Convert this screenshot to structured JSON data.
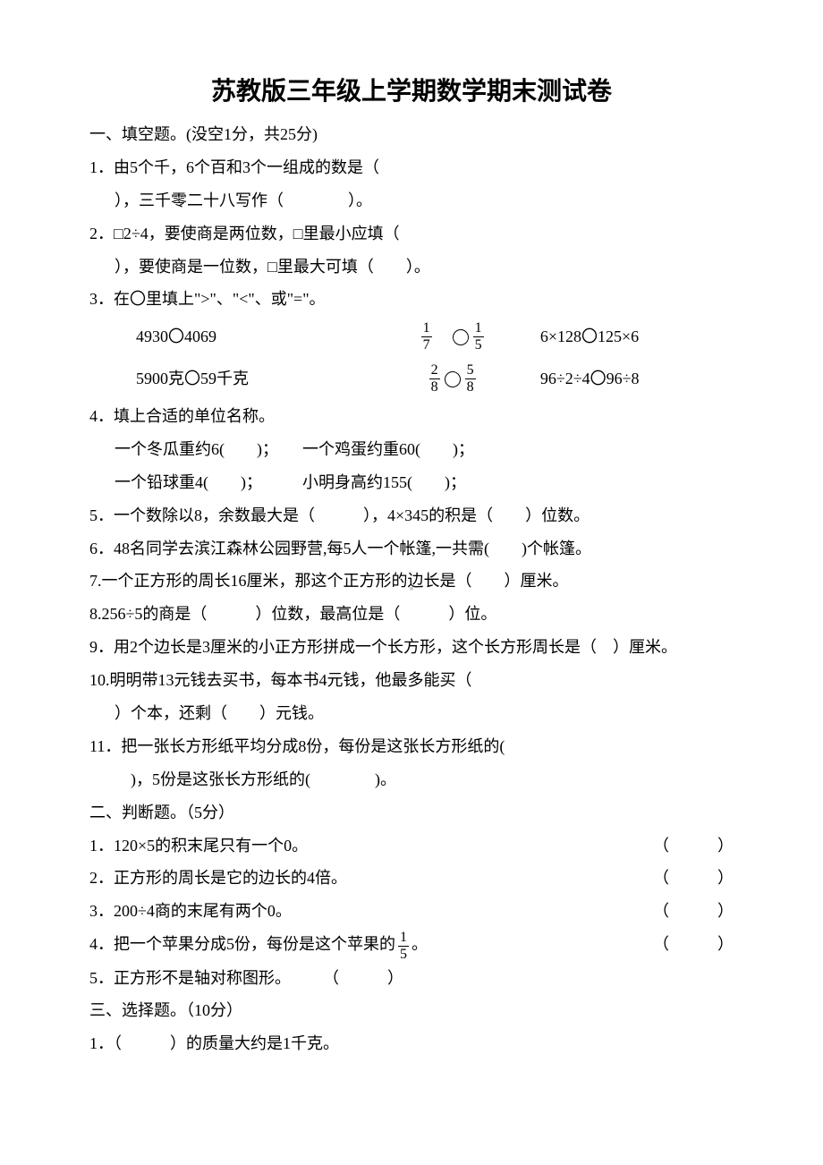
{
  "title": "苏教版三年级上学期数学期末测试卷",
  "section1_header": "一、填空题。(没空1分，共25分)",
  "q1a": "1．由5个千，6个百和3个一组成的数是（",
  "q1b": "），三千零二十八写作（　　　　）。",
  "q2a": "2．□2÷4，要使商是两位数，□里最小应填（",
  "q2b": "），要使商是一位数，□里最大可填（　　）。",
  "q3": "3．在〇里填上\">\"、\"<\"、或\"=\"。",
  "q3_r1_a": "4930〇4069",
  "q3_r1_c": "6×128〇125×6",
  "q3_r2_a": "5900克〇59千克",
  "q3_r2_c": "96÷2÷4〇96÷8",
  "frac_1_7": {
    "n": "1",
    "d": "7"
  },
  "frac_1_5": {
    "n": "1",
    "d": "5"
  },
  "frac_2_8": {
    "n": "2",
    "d": "8"
  },
  "frac_5_8": {
    "n": "5",
    "d": "8"
  },
  "q4": "4．填上合适的单位名称。",
  "q4a": "一个冬瓜重约6(　　)；　　一个鸡蛋约重60(　　)；",
  "q4b": "一个铅球重4(　　)；　　　小明身高约155(　　)；",
  "q5": "5．一个数除以8，余数最大是（　　　），4×345的积是（　　）位数。",
  "q6": "6．48名同学去滨江森林公园野营,每5人一个帐篷,一共需(　　)个帐篷。",
  "q7": "7.一个正方形的周长16厘米，那这个正方形的边长是（　　）厘米。",
  "q8": "8.256÷5的商是（　　　）位数，最高位是（　　　）位。",
  "q9": "9．用2个边长是3厘米的小正方形拼成一个长方形，这个长方形周长是（　）厘米。",
  "q10a": "10.明明带13元钱去买书，每本书4元钱，他最多能买（",
  "q10b": "）个本，还剩（　　）元钱。",
  "q11a": "11．把一张长方形纸平均分成8份，每份是这张长方形纸的(",
  "q11b": "　)，5份是这张长方形纸的(　　　　)。",
  "section2_header": "二、判断题。（5分）",
  "j1": "1．120×5的积末尾只有一个0。",
  "j2": "2．正方形的周长是它的边长的4倍。",
  "j3": "3．200÷4商的末尾有两个0。",
  "j4_pre": "4．把一个苹果分成5份，每份是这个苹果的",
  "j4_post": "。",
  "j5": "5．正方形不是轴对称图形。　　　（　　　）",
  "paren_text": "（　　　）",
  "section3_header": "三、选择题。（10分）",
  "s3q1": "1．（　　　）的质量大约是1千克。",
  "center_mark": "■"
}
